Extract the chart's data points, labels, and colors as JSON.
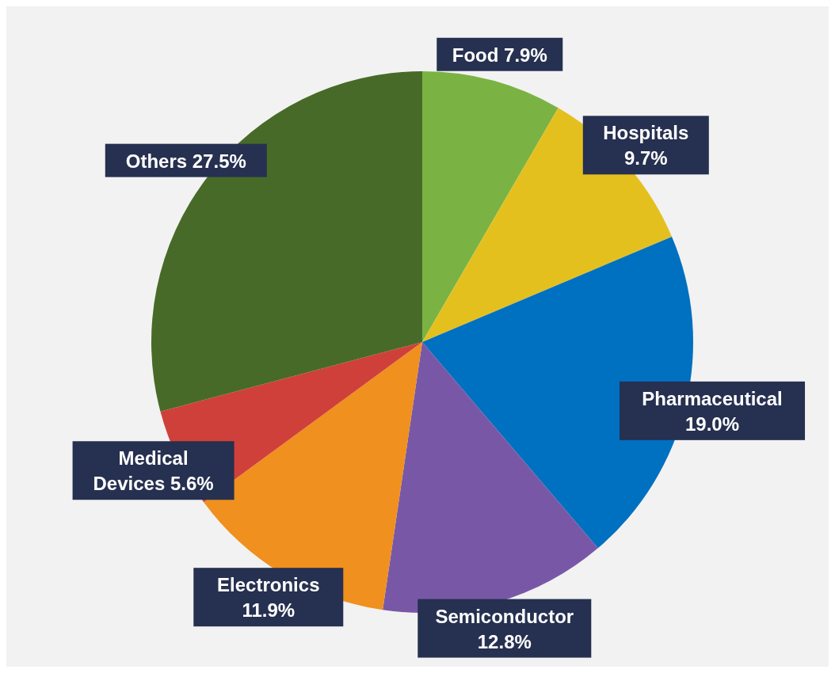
{
  "chart_data": {
    "type": "pie",
    "categories": [
      "Food",
      "Hospitals",
      "Pharmaceutical",
      "Semiconductor",
      "Electronics",
      "Medical Devices",
      "Others"
    ],
    "values": [
      7.9,
      9.7,
      19.0,
      12.8,
      11.9,
      5.6,
      27.5
    ],
    "value_labels": [
      "7.9%",
      "9.7%",
      "19.0%",
      "12.8%",
      "11.9%",
      "5.6%",
      "27.5%"
    ],
    "colors": [
      "#7ab343",
      "#e4c01f",
      "#0070c0",
      "#7858a6",
      "#f0901e",
      "#d0403a",
      "#486a28"
    ]
  }
}
